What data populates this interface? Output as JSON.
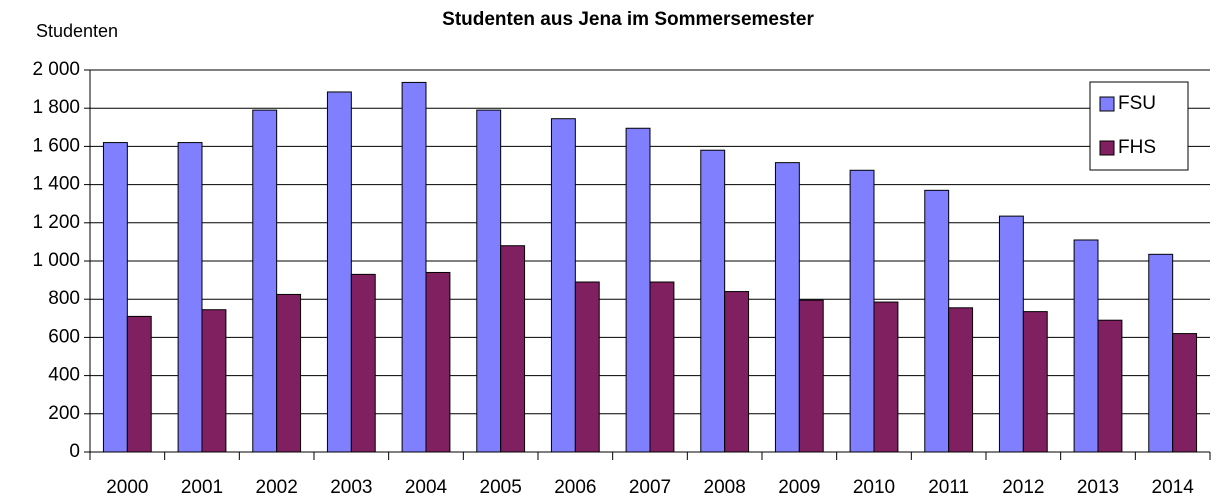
{
  "chart_data": {
    "type": "bar",
    "title": "Studenten aus Jena im Sommersemester",
    "y_label": "Studenten",
    "categories": [
      "2000",
      "2001",
      "2002",
      "2003",
      "2004",
      "2005",
      "2006",
      "2007",
      "2008",
      "2009",
      "2010",
      "2011",
      "2012",
      "2013",
      "2014"
    ],
    "series": [
      {
        "name": "FSU",
        "color": "#8080ff",
        "values": [
          1620,
          1620,
          1790,
          1885,
          1935,
          1790,
          1745,
          1695,
          1580,
          1515,
          1475,
          1370,
          1235,
          1110,
          1035
        ]
      },
      {
        "name": "FHS",
        "color": "#802060",
        "values": [
          710,
          745,
          825,
          930,
          940,
          1080,
          890,
          890,
          840,
          795,
          785,
          755,
          735,
          690,
          620
        ]
      }
    ],
    "ylim": [
      0,
      2000
    ],
    "yticks": [
      0,
      200,
      400,
      600,
      800,
      {
        "value": 1000,
        "label": "1 000"
      },
      {
        "value": 1200,
        "label": "1 200"
      },
      {
        "value": 1400,
        "label": "1 400"
      },
      {
        "value": 1600,
        "label": "1 600"
      },
      {
        "value": 1800,
        "label": "1 800"
      },
      {
        "value": 2000,
        "label": "2 000"
      }
    ],
    "grid": true,
    "legend": "top-right"
  }
}
